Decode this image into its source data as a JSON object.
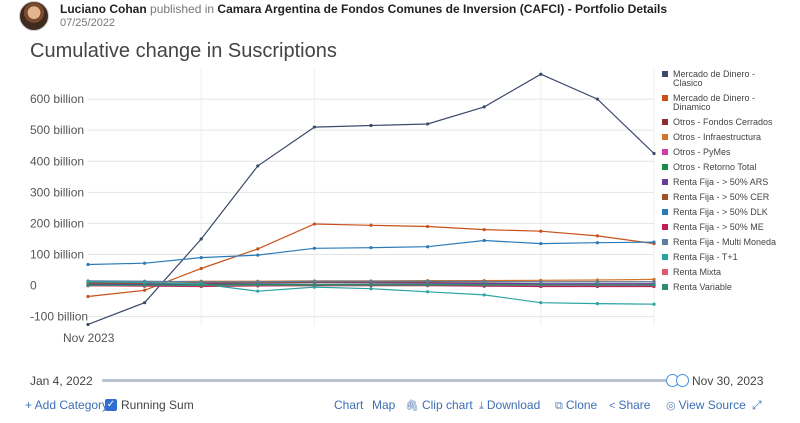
{
  "header": {
    "author": "Luciano Cohan",
    "published_in": "published in",
    "source": "Camara Argentina de Fondos Comunes de Inversion (CAFCI) - Portfolio Details",
    "date": "07/25/2022"
  },
  "slider": {
    "start_label": "Jan 4, 2022",
    "end_label": "Nov 30, 2023"
  },
  "toolbar": {
    "add_category": "+ Add Category",
    "running_sum": "Running Sum",
    "chart": "Chart",
    "map": "Map",
    "clip_chart": "Clip chart",
    "download": "Download",
    "clone": "Clone",
    "share": "Share",
    "view_source": "View Source"
  },
  "chart_data": {
    "type": "line",
    "title": "Cumulative change in Suscriptions",
    "x_tick_labels": [
      "Nov 2023"
    ],
    "y_ticks": [
      {
        "value": 600,
        "label": "600 billion"
      },
      {
        "value": 500,
        "label": "500 billion"
      },
      {
        "value": 400,
        "label": "400 billion"
      },
      {
        "value": 300,
        "label": "300 billion"
      },
      {
        "value": 200,
        "label": "200 billion"
      },
      {
        "value": 100,
        "label": "100 billion"
      },
      {
        "value": 0,
        "label": "0"
      },
      {
        "value": -100,
        "label": "-100 billion"
      }
    ],
    "ylim": [
      -130,
      700
    ],
    "x": [
      0,
      1,
      2,
      3,
      4,
      5,
      6,
      7,
      8,
      9,
      10
    ],
    "grid": true,
    "legend_position": "right",
    "series": [
      {
        "name": "Mercado de Dinero - Clasico",
        "color": "#3b4a6b",
        "values": [
          -125,
          -55,
          150,
          385,
          510,
          515,
          520,
          575,
          680,
          600,
          425
        ]
      },
      {
        "name": "Mercado de Dinero - Dinamico",
        "color": "#c8511b",
        "values": [
          -35,
          -15,
          55,
          118,
          198,
          194,
          190,
          180,
          175,
          160,
          135
        ]
      },
      {
        "name": "Otros - Fondos Cerrados",
        "color": "#8b2e2e",
        "values": [
          2,
          2,
          2,
          3,
          3,
          3,
          3,
          3,
          3,
          3,
          3
        ]
      },
      {
        "name": "Otros - Infraestructura",
        "color": "#d2742a",
        "values": [
          10,
          12,
          14,
          14,
          15,
          15,
          16,
          16,
          17,
          18,
          20
        ]
      },
      {
        "name": "Otros - PyMes",
        "color": "#d23aa5",
        "values": [
          0,
          0,
          1,
          1,
          1,
          1,
          1,
          1,
          1,
          1,
          1
        ]
      },
      {
        "name": "Otros - Retorno Total",
        "color": "#1a8b48",
        "values": [
          3,
          3,
          4,
          4,
          4,
          4,
          4,
          4,
          4,
          4,
          4
        ]
      },
      {
        "name": "Renta Fija - > 50% ARS",
        "color": "#6a3d9a",
        "values": [
          5,
          5,
          6,
          8,
          10,
          9,
          8,
          7,
          6,
          6,
          6
        ]
      },
      {
        "name": "Renta Fija - > 50% CER",
        "color": "#a0522d",
        "values": [
          8,
          8,
          9,
          10,
          12,
          12,
          12,
          12,
          12,
          12,
          12
        ]
      },
      {
        "name": "Renta Fija - > 50% DLK",
        "color": "#2b7bb9",
        "values": [
          68,
          72,
          90,
          98,
          120,
          122,
          125,
          145,
          135,
          138,
          140
        ]
      },
      {
        "name": "Renta Fija - > 50% ME",
        "color": "#c21e56",
        "values": [
          0,
          -2,
          -3,
          -1,
          0,
          0,
          0,
          -2,
          -3,
          -3,
          -3
        ]
      },
      {
        "name": "Renta Fija - Multi Moneda",
        "color": "#5b7fa3",
        "values": [
          15,
          14,
          12,
          12,
          14,
          14,
          14,
          13,
          12,
          12,
          12
        ]
      },
      {
        "name": "Renta Fija - T+1",
        "color": "#2aa3a3",
        "values": [
          12,
          10,
          5,
          -18,
          -5,
          -10,
          -20,
          -30,
          -55,
          -58,
          -60
        ]
      },
      {
        "name": "Renta Mixta",
        "color": "#e0566d",
        "values": [
          0,
          0,
          0,
          1,
          2,
          2,
          2,
          2,
          2,
          2,
          2
        ]
      },
      {
        "name": "Renta Variable",
        "color": "#2e8b76",
        "values": [
          1,
          1,
          1,
          2,
          2,
          2,
          2,
          2,
          2,
          2,
          2
        ]
      }
    ]
  }
}
